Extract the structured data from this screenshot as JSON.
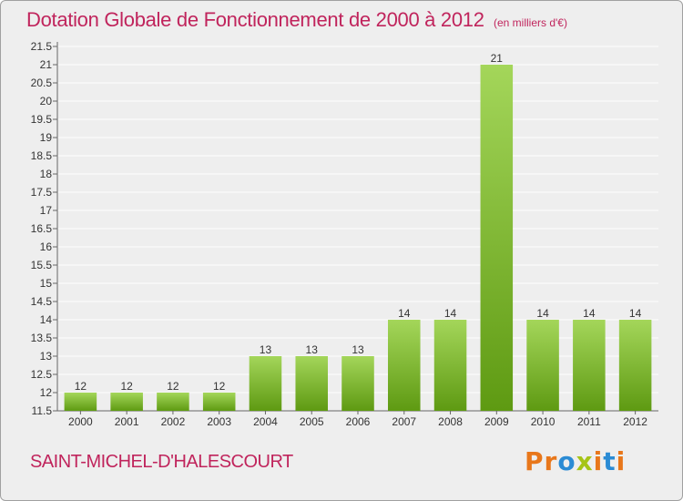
{
  "header": {
    "title": "Dotation Globale de Fonctionnement de 2000 à 2012",
    "unit_note": "(en milliers d'€)"
  },
  "footer": {
    "city": "SAINT-MICHEL-D'HALESCOURT",
    "logo_letters": [
      "P",
      "r",
      "o",
      "x",
      "i",
      "t",
      "i"
    ],
    "logo_colors": [
      "#e8771b",
      "#e8771b",
      "#2b8bd4",
      "#a6c417",
      "#e8771b",
      "#2b8bd4",
      "#e8771b"
    ]
  },
  "colors": {
    "bar_light": "#a4d65a",
    "bar_dark": "#5e9a12",
    "title": "#c0245c",
    "plot_bg": "#eeeeee",
    "grid": "#ffffff"
  },
  "chart_data": {
    "type": "bar",
    "categories": [
      "2000",
      "2001",
      "2002",
      "2003",
      "2004",
      "2005",
      "2006",
      "2007",
      "2008",
      "2009",
      "2010",
      "2011",
      "2012"
    ],
    "values": [
      12,
      12,
      12,
      12,
      13,
      13,
      13,
      14,
      14,
      21,
      14,
      14,
      14
    ],
    "data_labels": [
      "12",
      "12",
      "12",
      "12",
      "13",
      "13",
      "13",
      "14",
      "14",
      "21",
      "14",
      "14",
      "14"
    ],
    "yticks": [
      "11.5",
      "12",
      "12.5",
      "13",
      "13.5",
      "14",
      "14.5",
      "15",
      "15.5",
      "16",
      "16.5",
      "17",
      "17.5",
      "18",
      "18.5",
      "19",
      "19.5",
      "20",
      "20.5",
      "21",
      "21.5"
    ],
    "ylim": [
      11.5,
      21.5
    ],
    "title": "Dotation Globale de Fonctionnement de 2000 à 2012",
    "xlabel": "",
    "ylabel": "",
    "grid": true,
    "legend": "none"
  }
}
